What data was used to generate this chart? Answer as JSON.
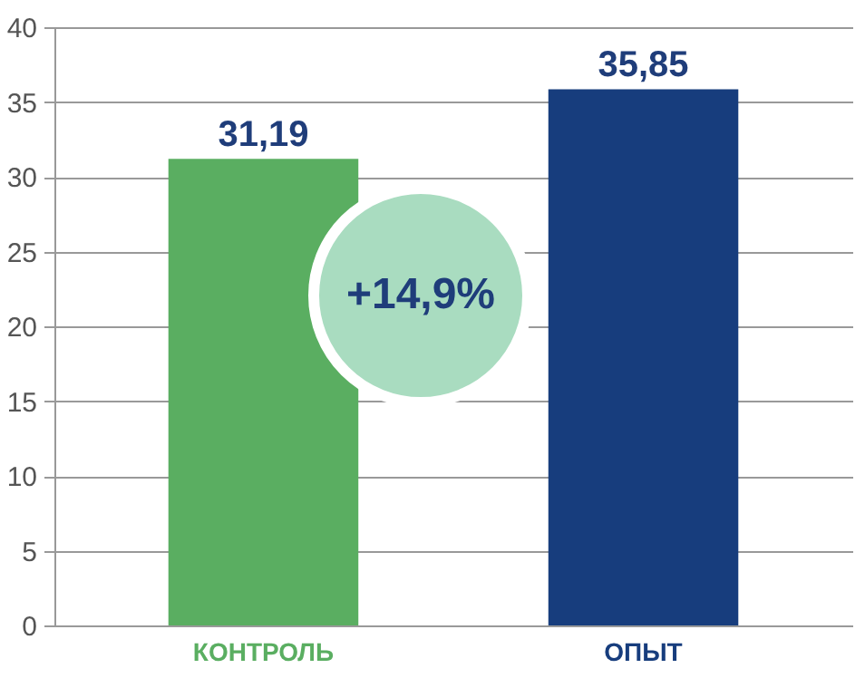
{
  "chart_data": {
    "type": "bar",
    "categories": [
      "КОНТРОЛЬ",
      "ОПЫТ"
    ],
    "values": [
      31.19,
      35.85
    ],
    "colors": [
      "#5aae61",
      "#173d7d"
    ],
    "value_labels": [
      "31,19",
      "35,85"
    ],
    "ylim": [
      0,
      40
    ],
    "yticks": [
      0,
      5,
      10,
      15,
      20,
      25,
      30,
      35,
      40
    ],
    "grid": "y",
    "annotations": [
      "+14,9%"
    ]
  }
}
